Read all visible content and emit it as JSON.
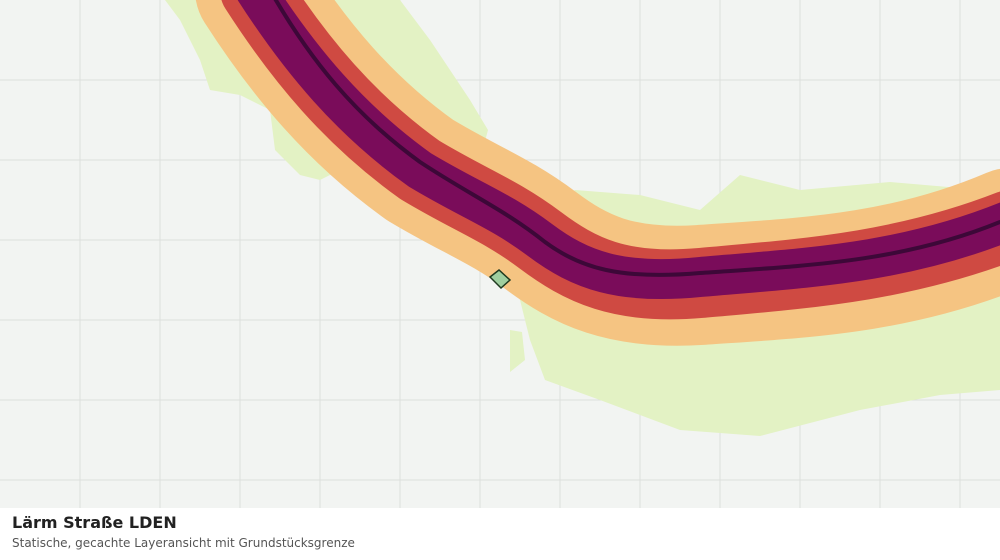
{
  "caption": {
    "title": "Lärm Straße LDEN",
    "subtitle": "Statische, gecachte Layeransicht mit Grundstücksgrenze"
  }
}
